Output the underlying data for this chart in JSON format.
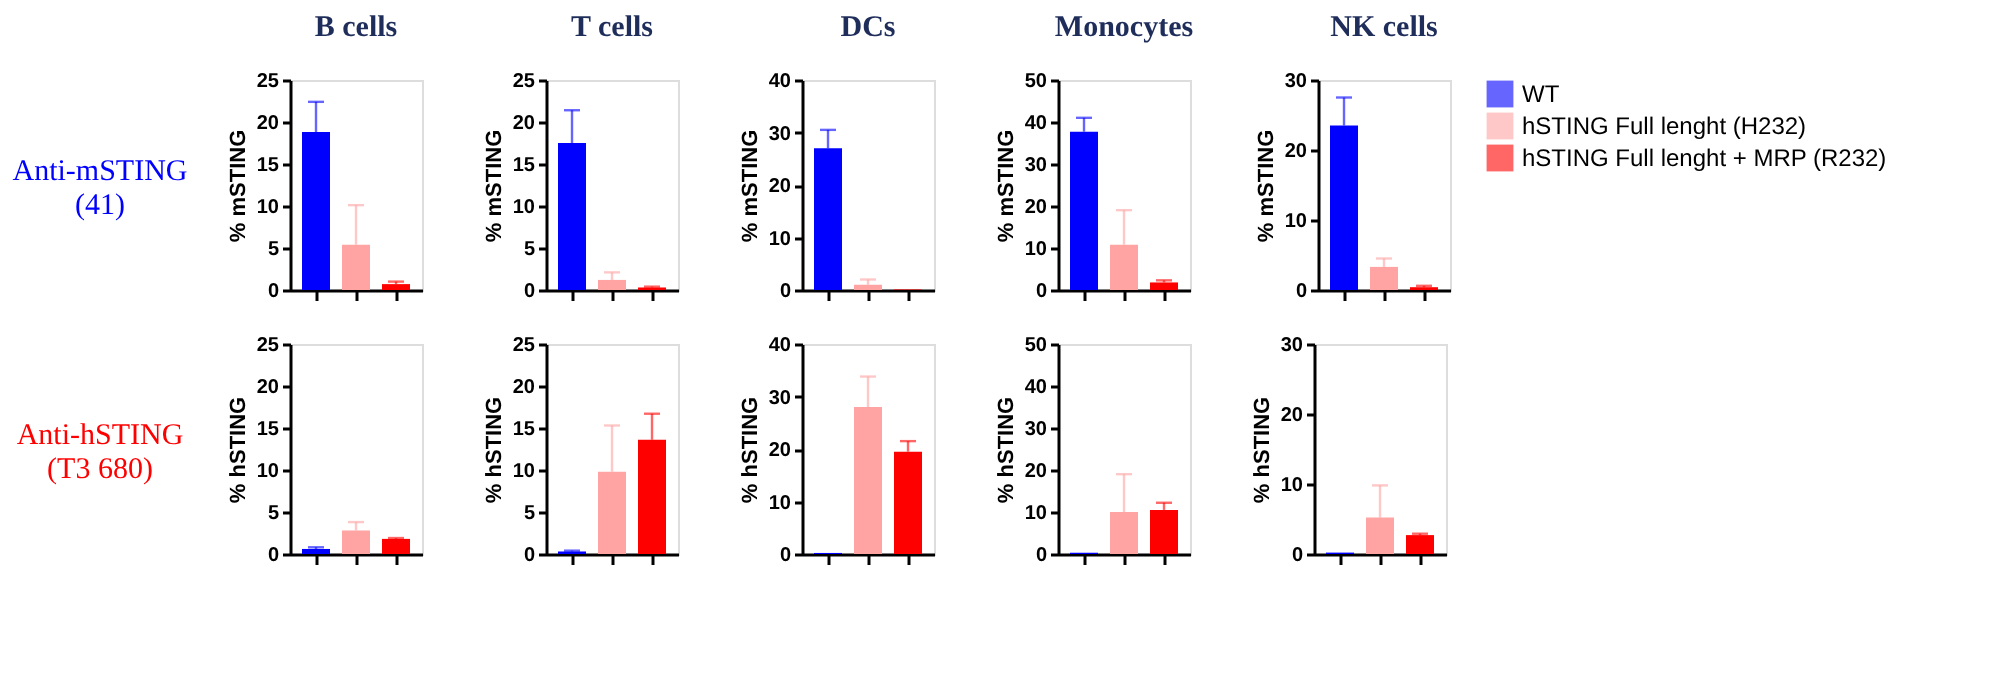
{
  "chart_data": [
    {
      "type": "bar",
      "title": "B cells",
      "ylabel": "% mSTING",
      "categories": [
        null,
        null,
        null
      ],
      "ylim": [
        0,
        25
      ],
      "yticks": [
        0,
        5,
        10,
        15,
        20,
        25
      ],
      "grid": false,
      "tick_labels": "y",
      "annotations": [
        "Anti-mSTING\n(41)"
      ],
      "series": [
        {
          "color": "#0000ff",
          "values": [
            18.8,
            null,
            null
          ],
          "errors": [
            [
              18.8,
              22.4
            ],
            null,
            null
          ]
        },
        {
          "color": "#ffa3a3",
          "values": [
            null,
            5.4,
            null
          ],
          "errors": [
            null,
            [
              5.4,
              10.1
            ],
            null
          ]
        },
        {
          "color": "#ff0000",
          "values": [
            null,
            null,
            0.7
          ],
          "errors": [
            null,
            null,
            [
              0.7,
              1.0
            ]
          ]
        }
      ]
    },
    {
      "type": "bar",
      "title": "T cells",
      "ylabel": "% mSTING",
      "categories": [
        null,
        null,
        null
      ],
      "ylim": [
        0,
        25
      ],
      "yticks": [
        0,
        5,
        10,
        15,
        20,
        25
      ],
      "grid": false,
      "tick_labels": "y",
      "series": [
        {
          "color": "#0000ff",
          "values": [
            17.5,
            null,
            null
          ],
          "errors": [
            [
              17.5,
              21.4
            ],
            null,
            null
          ]
        },
        {
          "color": "#ffa3a3",
          "values": [
            null,
            1.2,
            null
          ],
          "errors": [
            null,
            [
              1.2,
              2.1
            ],
            null
          ]
        },
        {
          "color": "#ff0000",
          "values": [
            null,
            null,
            0.3
          ],
          "errors": [
            null,
            null,
            [
              0.3,
              0.4
            ]
          ]
        }
      ]
    },
    {
      "type": "bar",
      "title": "DCs",
      "ylabel": "% mSTING",
      "categories": [
        null,
        null,
        null
      ],
      "ylim": [
        0,
        40
      ],
      "yticks": [
        0,
        10,
        20,
        30,
        40
      ],
      "grid": false,
      "tick_labels": "y",
      "series": [
        {
          "color": "#0000ff",
          "values": [
            27,
            null,
            null
          ],
          "errors": [
            [
              27,
              30.5
            ],
            null,
            null
          ]
        },
        {
          "color": "#ffa3a3",
          "values": [
            null,
            1.0,
            null
          ],
          "errors": [
            null,
            [
              1.0,
              2.0
            ],
            null
          ]
        },
        {
          "color": "#ff0000",
          "values": [
            null,
            null,
            0.1
          ],
          "errors": [
            null,
            null,
            null
          ]
        }
      ]
    },
    {
      "type": "bar",
      "title": "Monocytes",
      "ylabel": "% mSTING",
      "categories": [
        null,
        null,
        null
      ],
      "ylim": [
        0,
        50
      ],
      "yticks": [
        0,
        10,
        20,
        30,
        40,
        50
      ],
      "grid": false,
      "tick_labels": "y",
      "series": [
        {
          "color": "#0000ff",
          "values": [
            37.7,
            null,
            null
          ],
          "errors": [
            [
              37.7,
              41
            ],
            null,
            null
          ]
        },
        {
          "color": "#ffa3a3",
          "values": [
            null,
            10.8,
            null
          ],
          "errors": [
            null,
            [
              10.8,
              19
            ],
            null
          ]
        },
        {
          "color": "#ff0000",
          "values": [
            null,
            null,
            1.8
          ],
          "errors": [
            null,
            null,
            [
              1.8,
              2.3
            ]
          ]
        }
      ]
    },
    {
      "type": "bar",
      "title": "NK cells",
      "ylabel": "% mSTING",
      "categories": [
        null,
        null,
        null
      ],
      "ylim": [
        0,
        30
      ],
      "yticks": [
        0,
        10,
        20,
        30
      ],
      "grid": false,
      "tick_labels": "y",
      "legend": "right",
      "series": [
        {
          "name": "WT",
          "color": "#0000ff",
          "values": [
            23.5,
            null,
            null
          ],
          "errors": [
            [
              23.5,
              27.5
            ],
            null,
            null
          ]
        },
        {
          "name": "hSTING Full lenght (H232)",
          "color": "#ffa3a3",
          "values": [
            null,
            3.3,
            null
          ],
          "errors": [
            null,
            [
              3.3,
              4.5
            ],
            null
          ]
        },
        {
          "name": "hSTING Full lenght + MRP (R232)",
          "color": "#ff0000",
          "values": [
            null,
            null,
            0.4
          ],
          "errors": [
            null,
            null,
            [
              0.4,
              0.6
            ]
          ]
        }
      ]
    },
    {
      "type": "bar",
      "ylabel": "% hSTING",
      "categories": [
        null,
        null,
        null
      ],
      "ylim": [
        0,
        25
      ],
      "yticks": [
        0,
        5,
        10,
        15,
        20,
        25
      ],
      "grid": false,
      "tick_labels": "y",
      "annotations": [
        "Anti-hSTING\n(T3 680)"
      ],
      "series": [
        {
          "color": "#0000ff",
          "values": [
            0.6,
            null,
            null
          ],
          "errors": [
            [
              0.6,
              0.8
            ],
            null,
            null
          ]
        },
        {
          "color": "#ffa3a3",
          "values": [
            null,
            2.8,
            null
          ],
          "errors": [
            null,
            [
              2.8,
              3.8
            ],
            null
          ]
        },
        {
          "color": "#ff0000",
          "values": [
            null,
            null,
            1.8
          ],
          "errors": [
            null,
            null,
            [
              1.8,
              1.9
            ]
          ]
        }
      ]
    },
    {
      "type": "bar",
      "ylabel": "% hSTING",
      "categories": [
        null,
        null,
        null
      ],
      "ylim": [
        0,
        25
      ],
      "yticks": [
        0,
        5,
        10,
        15,
        20,
        25
      ],
      "grid": false,
      "tick_labels": "y",
      "series": [
        {
          "color": "#0000ff",
          "values": [
            0.3,
            null,
            null
          ],
          "errors": [
            [
              0.3,
              0.4
            ],
            null,
            null
          ]
        },
        {
          "color": "#ffa3a3",
          "values": [
            null,
            9.8,
            null
          ],
          "errors": [
            null,
            [
              9.8,
              15.3
            ],
            null
          ]
        },
        {
          "color": "#ff0000",
          "values": [
            null,
            null,
            13.6
          ],
          "errors": [
            null,
            null,
            [
              13.6,
              16.7
            ]
          ]
        }
      ]
    },
    {
      "type": "bar",
      "ylabel": "% hSTING",
      "categories": [
        null,
        null,
        null
      ],
      "ylim": [
        0,
        40
      ],
      "yticks": [
        0,
        10,
        20,
        30,
        40
      ],
      "grid": false,
      "tick_labels": "y",
      "series": [
        {
          "color": "#0000ff",
          "values": [
            0.2,
            null,
            null
          ],
          "errors": [
            null,
            null,
            null
          ]
        },
        {
          "color": "#ffa3a3",
          "values": [
            null,
            28,
            null
          ],
          "errors": [
            null,
            [
              28,
              33.8
            ],
            null
          ]
        },
        {
          "color": "#ff0000",
          "values": [
            null,
            null,
            19.5
          ],
          "errors": [
            null,
            null,
            [
              19.5,
              21.5
            ]
          ]
        }
      ]
    },
    {
      "type": "bar",
      "ylabel": "% hSTING",
      "categories": [
        null,
        null,
        null
      ],
      "ylim": [
        0,
        50
      ],
      "yticks": [
        0,
        10,
        20,
        30,
        40,
        50
      ],
      "grid": false,
      "tick_labels": "y",
      "series": [
        {
          "color": "#0000ff",
          "values": [
            0.3,
            null,
            null
          ],
          "errors": [
            null,
            null,
            null
          ]
        },
        {
          "color": "#ffa3a3",
          "values": [
            null,
            10,
            null
          ],
          "errors": [
            null,
            [
              10,
              19
            ],
            null
          ]
        },
        {
          "color": "#ff0000",
          "values": [
            null,
            null,
            10.5
          ],
          "errors": [
            null,
            null,
            [
              10.5,
              12.2
            ]
          ]
        }
      ]
    },
    {
      "type": "bar",
      "ylabel": "% hSTING",
      "categories": [
        null,
        null,
        null
      ],
      "ylim": [
        0,
        30
      ],
      "yticks": [
        0,
        10,
        20,
        30
      ],
      "grid": false,
      "tick_labels": "y",
      "series": [
        {
          "color": "#0000ff",
          "values": [
            0.2,
            null,
            null
          ],
          "errors": [
            null,
            null,
            null
          ]
        },
        {
          "color": "#ffa3a3",
          "values": [
            null,
            5.2,
            null
          ],
          "errors": [
            null,
            [
              5.2,
              9.8
            ],
            null
          ]
        },
        {
          "color": "#ff0000",
          "values": [
            null,
            null,
            2.7
          ],
          "errors": [
            null,
            null,
            [
              2.7,
              2.9
            ]
          ]
        }
      ]
    }
  ]
}
